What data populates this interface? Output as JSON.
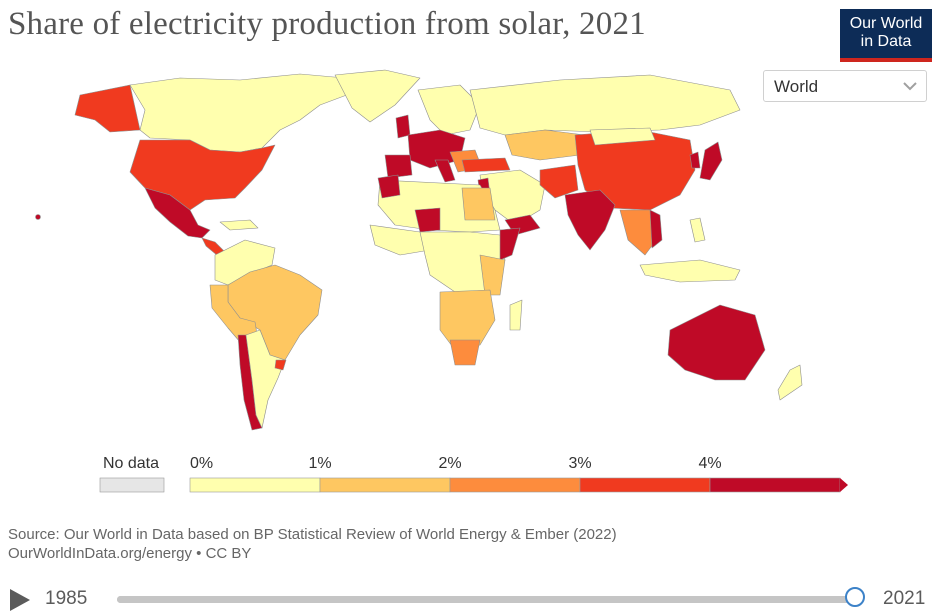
{
  "header": {
    "title": "Share of electricity production from solar, 2021",
    "logo_line1": "Our World",
    "logo_line2": "in Data"
  },
  "entity_selector": {
    "value": "World"
  },
  "colors": {
    "no_data": "#e6e6e6",
    "bin0": "#ffffae",
    "bin1": "#fec761",
    "bin2": "#fd8c3d",
    "bin3": "#f03a1f",
    "bin4": "#bf0a27",
    "border": "#999999"
  },
  "legend": {
    "no_data_label": "No data",
    "ticks": [
      "0%",
      "1%",
      "2%",
      "3%",
      "4%"
    ]
  },
  "footer": {
    "source": "Source: Our World in Data based on BP Statistical Review of World Energy & Ember (2022)",
    "license": "OurWorldInData.org/energy • CC BY"
  },
  "timeline": {
    "start_year": "1985",
    "end_year": "2021",
    "position_fraction": 1.0
  }
}
